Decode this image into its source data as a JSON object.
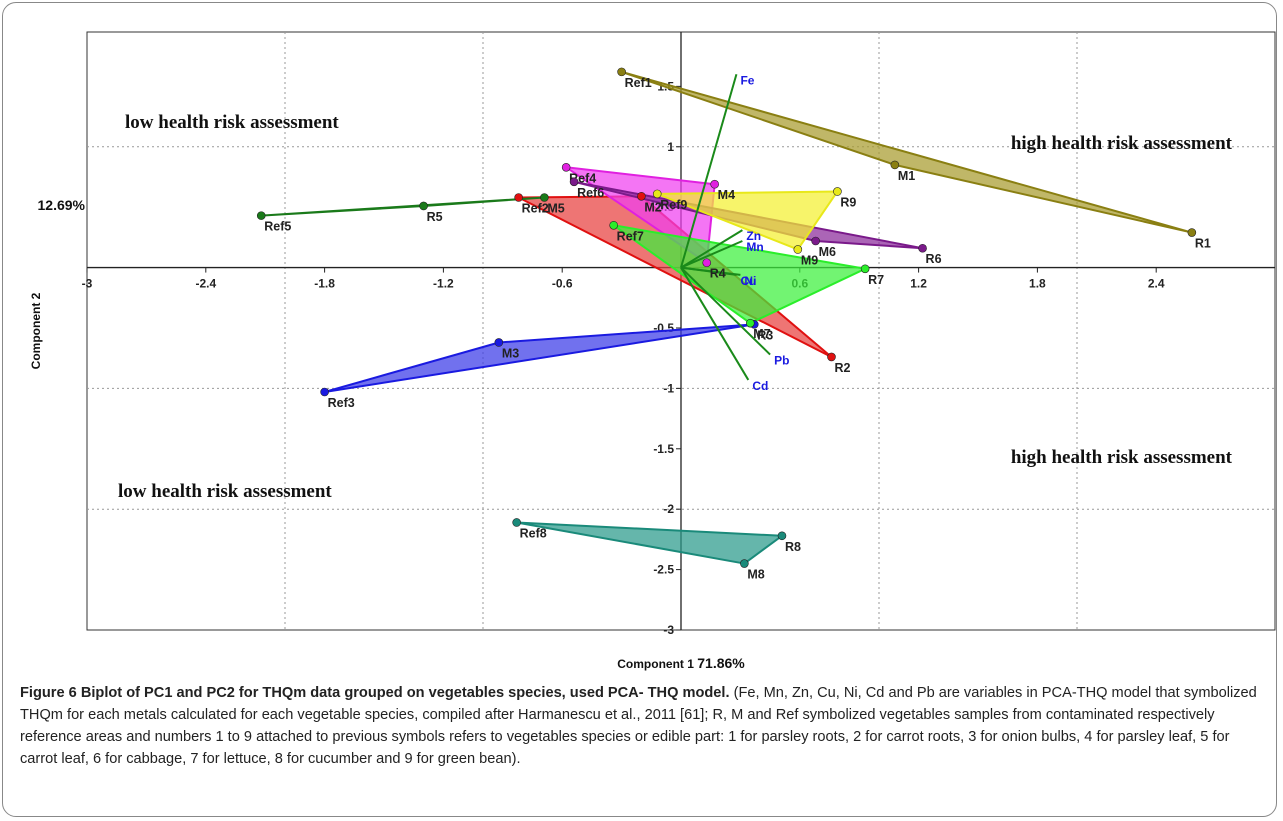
{
  "chart_data": {
    "type": "scatter",
    "xlabel": "Component 1",
    "xlabel_pct": "71.86%",
    "ylabel": "Component 2",
    "ylabel_pct": "12.69%",
    "xlim": [
      -3.0,
      3.0
    ],
    "ylim": [
      -3.0,
      1.95
    ],
    "xticks": [
      -3,
      -2.4,
      -1.8,
      -1.2,
      -0.6,
      0.6,
      1.2,
      1.8,
      2.4
    ],
    "yticks": [
      -3,
      -2.5,
      -2,
      -1.5,
      -1,
      -0.5,
      0.5,
      1,
      1.5
    ],
    "grid": "dotted at x = -2, -1, 1, 2 and y = 1, -1, -2",
    "annotations": [
      {
        "text": "low health risk assessment",
        "position": "upper-left"
      },
      {
        "text": "high health risk assessment",
        "position": "upper-right"
      },
      {
        "text": "low health risk assessment",
        "position": "lower-left"
      },
      {
        "text": "high health risk assessment",
        "position": "lower-right"
      }
    ],
    "groups": [
      {
        "color": "#8a7f12",
        "fill": "#a89b2e",
        "points": [
          {
            "label": "Ref1",
            "x": -0.3,
            "y": 1.62
          },
          {
            "label": "M1",
            "x": 1.08,
            "y": 0.85
          },
          {
            "label": "R1",
            "x": 2.58,
            "y": 0.29
          }
        ]
      },
      {
        "color": "#e01010",
        "fill": "#e8403e",
        "points": [
          {
            "label": "Ref2",
            "x": -0.82,
            "y": 0.58
          },
          {
            "label": "M2",
            "x": -0.2,
            "y": 0.59
          },
          {
            "label": "R2",
            "x": 0.76,
            "y": -0.74
          }
        ]
      },
      {
        "color": "#1a1ae0",
        "fill": "#3a3ae8",
        "points": [
          {
            "label": "Ref3",
            "x": -1.8,
            "y": -1.03
          },
          {
            "label": "M3",
            "x": -0.92,
            "y": -0.62
          },
          {
            "label": "R3",
            "x": 0.37,
            "y": -0.47
          }
        ]
      },
      {
        "color": "#e020e0",
        "fill": "#f040f0",
        "points": [
          {
            "label": "Ref4",
            "x": -0.58,
            "y": 0.83
          },
          {
            "label": "M4",
            "x": 0.17,
            "y": 0.69
          },
          {
            "label": "R4",
            "x": 0.13,
            "y": 0.04
          }
        ]
      },
      {
        "color": "#1a7a1a",
        "fill": "#2a8a2a",
        "points": [
          {
            "label": "Ref5",
            "x": -2.12,
            "y": 0.43
          },
          {
            "label": "R5",
            "x": -1.3,
            "y": 0.51
          },
          {
            "label": "M5",
            "x": -0.69,
            "y": 0.58
          }
        ]
      },
      {
        "color": "#7a1a8a",
        "fill": "#8a2a9a",
        "points": [
          {
            "label": "Ref6",
            "x": -0.54,
            "y": 0.71
          },
          {
            "label": "M6",
            "x": 0.68,
            "y": 0.22
          },
          {
            "label": "R6",
            "x": 1.22,
            "y": 0.16
          }
        ]
      },
      {
        "color": "#2aee2a",
        "fill": "#3cf03c",
        "points": [
          {
            "label": "Ref7",
            "x": -0.34,
            "y": 0.35
          },
          {
            "label": "R7",
            "x": 0.93,
            "y": -0.01
          },
          {
            "label": "M7",
            "x": 0.35,
            "y": -0.46
          }
        ]
      },
      {
        "color": "#1a8a7a",
        "fill": "#2a9a8a",
        "points": [
          {
            "label": "Ref8",
            "x": -0.83,
            "y": -2.11
          },
          {
            "label": "R8",
            "x": 0.51,
            "y": -2.22
          },
          {
            "label": "M8",
            "x": 0.32,
            "y": -2.45
          }
        ]
      },
      {
        "color": "#e8e81a",
        "fill": "#f4f030",
        "points": [
          {
            "label": "Ref9",
            "x": -0.12,
            "y": 0.61
          },
          {
            "label": "R9",
            "x": 0.79,
            "y": 0.63
          },
          {
            "label": "M9",
            "x": 0.59,
            "y": 0.15
          }
        ]
      }
    ],
    "vectors": [
      {
        "label": "Fe",
        "x": 0.28,
        "y": 1.6
      },
      {
        "label": "Zn",
        "x": 0.31,
        "y": 0.31
      },
      {
        "label": "Mn",
        "x": 0.31,
        "y": 0.22
      },
      {
        "label": "Cu",
        "x": 0.28,
        "y": -0.06
      },
      {
        "label": "Ni",
        "x": 0.3,
        "y": -0.06
      },
      {
        "label": "Pb",
        "x": 0.45,
        "y": -0.72
      },
      {
        "label": "Cd",
        "x": 0.34,
        "y": -0.93
      }
    ]
  },
  "caption": {
    "figure_title": "Figure 6 Biplot of PC1 and PC2 for THQm data grouped on vegetables species, used PCA- THQ model.",
    "text": "(Fe, Mn, Zn, Cu, Ni, Cd and Pb are variables in PCA-THQ model that symbolized THQm for each metals calculated for each vegetable species, compiled after Harmanescu et al., 2011 [61]; R, M and Ref symbolized vegetables samples from contaminated respectively reference areas and numbers 1 to 9 attached to previous symbols refers to vegetables species or edible part: 1 for parsley roots, 2 for carrot roots, 3 for onion bulbs, 4 for parsley leaf, 5 for carrot leaf, 6 for cabbage, 7 for lettuce, 8 for cucumber and 9 for green bean)."
  }
}
